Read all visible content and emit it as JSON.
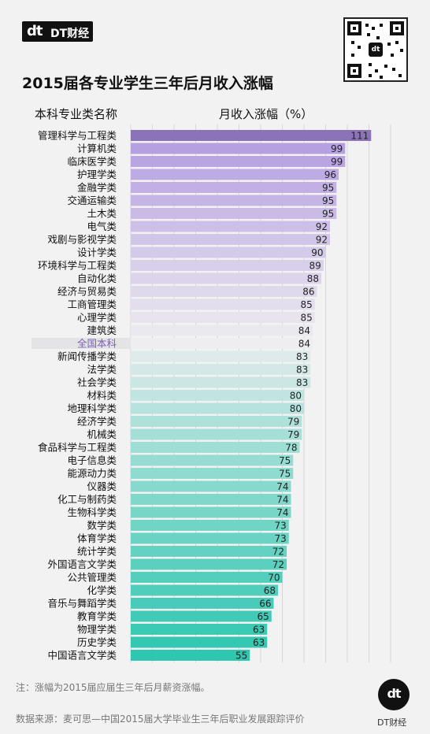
{
  "brand": {
    "mark": "dt",
    "name": "DT财经"
  },
  "title": "2015届各专业学生三年后月收入涨幅",
  "column_headers": {
    "category": "本科专业类名称",
    "value": "月收入涨幅（%）"
  },
  "footnote": "注：涨幅为2015届应届生三年后月薪资涨幅。",
  "source": "数据来源：麦可思—中国2015届大学毕业生三年后职业发展跟踪评价",
  "logo": {
    "mark": "dt",
    "text": "DT财经"
  },
  "colors": {
    "top": "#8b73b8",
    "bottom": "#2ec7b0",
    "highlight_label": "#7b5fb0"
  },
  "chart_data": {
    "type": "bar",
    "orientation": "horizontal",
    "categories": [
      "管理科学与工程类",
      "计算机类",
      "临床医学类",
      "护理学类",
      "金融学类",
      "交通运输类",
      "土木类",
      "电气类",
      "戏剧与影视学类",
      "设计学类",
      "环境科学与工程类",
      "自动化类",
      "经济与贸易类",
      "工商管理类",
      "心理学类",
      "建筑类",
      "全国本科",
      "新闻传播学类",
      "法学类",
      "社会学类",
      "材料类",
      "地理科学类",
      "经济学类",
      "机械类",
      "食品科学与工程类",
      "电子信息类",
      "能源动力类",
      "仪器类",
      "化工与制药类",
      "生物科学类",
      "数学类",
      "体育学类",
      "统计学类",
      "外国语言文学类",
      "公共管理类",
      "化学类",
      "音乐与舞蹈学类",
      "教育学类",
      "物理学类",
      "历史学类",
      "中国语言文学类"
    ],
    "values": [
      111,
      99,
      99,
      96,
      95,
      95,
      95,
      92,
      92,
      90,
      89,
      88,
      86,
      85,
      85,
      84,
      84,
      83,
      83,
      83,
      80,
      80,
      79,
      79,
      78,
      75,
      75,
      74,
      74,
      74,
      73,
      73,
      72,
      72,
      70,
      68,
      66,
      65,
      63,
      63,
      55
    ],
    "highlight": "全国本科",
    "xlim": [
      0,
      120
    ],
    "grid": true
  }
}
